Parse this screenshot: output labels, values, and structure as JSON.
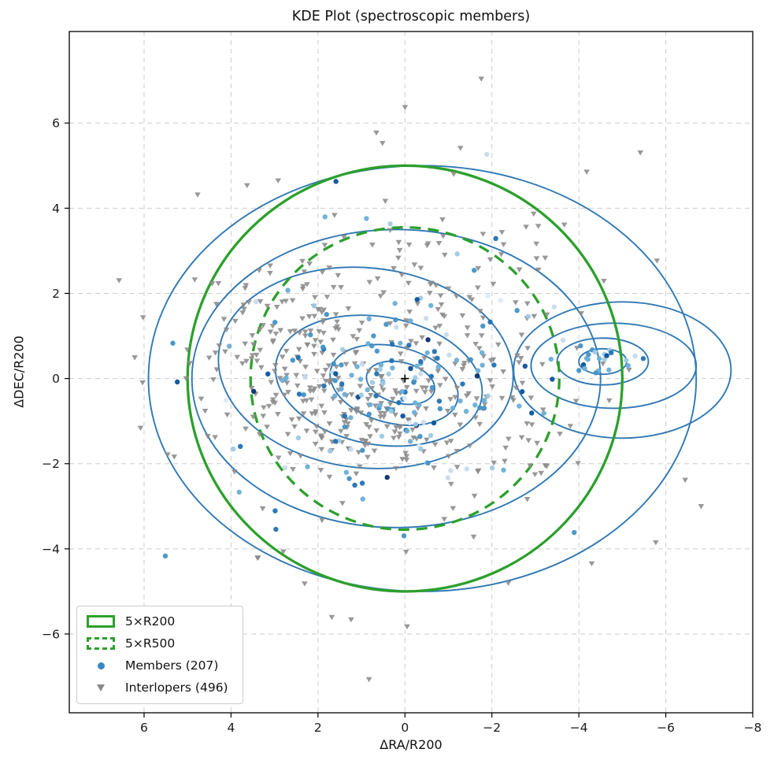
{
  "chart_data": {
    "type": "scatter",
    "subtype": "kde-contour-scatter",
    "title": "KDE Plot (spectroscopic members)",
    "xlabel": "ΔRA/R200",
    "ylabel": "ΔDEC/R200",
    "xlim": [
      7.72,
      -8.0
    ],
    "ylim": [
      -7.85,
      8.15
    ],
    "x_axis_inverted": true,
    "grid": true,
    "grid_style": "dashed",
    "xticks": [
      {
        "value": 6,
        "label": "6"
      },
      {
        "value": 4,
        "label": "4"
      },
      {
        "value": 2,
        "label": "2"
      },
      {
        "value": 0,
        "label": "0"
      },
      {
        "value": -2,
        "label": "−2"
      },
      {
        "value": -4,
        "label": "−4"
      },
      {
        "value": -6,
        "label": "−6"
      },
      {
        "value": -8,
        "label": "−8"
      }
    ],
    "yticks": [
      {
        "value": -6,
        "label": "−6"
      },
      {
        "value": -4,
        "label": "−4"
      },
      {
        "value": -2,
        "label": "−2"
      },
      {
        "value": 0,
        "label": "0"
      },
      {
        "value": 2,
        "label": "2"
      },
      {
        "value": 4,
        "label": "4"
      },
      {
        "value": 6,
        "label": "6"
      }
    ],
    "reference_circles": [
      {
        "name": "5×R200",
        "center": [
          0,
          0
        ],
        "radius": 5.0,
        "line_style": "solid",
        "color": "#2ca02c",
        "width": 3.3
      },
      {
        "name": "5×R500",
        "center": [
          0,
          0
        ],
        "radius": 3.55,
        "line_style": "dashed",
        "color": "#2ca02c",
        "width": 3.3
      }
    ],
    "kde_contours": {
      "color": "#3078b4",
      "width": 1.9,
      "levels": [
        {
          "cx": 0.1,
          "cy": -0.1,
          "rx": 0.8,
          "ry": 0.48,
          "rot": 14
        },
        {
          "cx": 0.25,
          "cy": -0.15,
          "rx": 1.5,
          "ry": 0.9,
          "rot": 14
        },
        {
          "cx": 0.6,
          "cy": -0.05,
          "rx": 2.4,
          "ry": 1.5,
          "rot": 10
        },
        {
          "cx": 0.9,
          "cy": 0.25,
          "rx": 3.4,
          "ry": 2.35,
          "rot": 6
        },
        {
          "cx": 0.2,
          "cy": 0.0,
          "rx": 4.7,
          "ry": 3.5,
          "rot": 0
        },
        {
          "cx": -0.4,
          "cy": 0.0,
          "rx": 6.3,
          "ry": 5.0,
          "rot": 0
        },
        {
          "cx": -4.55,
          "cy": 0.4,
          "rx": 0.55,
          "ry": 0.3,
          "rot": 0
        },
        {
          "cx": -4.55,
          "cy": 0.4,
          "rx": 1.05,
          "ry": 0.55,
          "rot": 0
        },
        {
          "cx": -4.8,
          "cy": 0.3,
          "rx": 1.9,
          "ry": 1.0,
          "rot": 0
        },
        {
          "cx": -5.0,
          "cy": 0.2,
          "rx": 2.5,
          "ry": 1.6,
          "rot": 0
        }
      ]
    },
    "series": [
      {
        "name": "Interlopers (496)",
        "marker": "triangle-down",
        "count": 496,
        "color": "#8a8a8a",
        "opacity": 0.88,
        "clusters": [
          {
            "cx": 2.6,
            "cy": 0.8,
            "sx": 1.0,
            "sy": 0.9,
            "count": 120
          },
          {
            "cx": 1.3,
            "cy": -0.9,
            "sx": 1.0,
            "sy": 0.55,
            "count": 90
          },
          {
            "cx": -0.6,
            "cy": 1.6,
            "sx": 1.6,
            "sy": 1.0,
            "count": 80
          },
          {
            "cx": -1.5,
            "cy": -0.8,
            "sx": 1.5,
            "sy": 1.0,
            "count": 70
          },
          {
            "cx": 0.0,
            "cy": 0.0,
            "sx": 3.2,
            "sy": 2.6,
            "count": 136
          }
        ]
      },
      {
        "name": "Members (207)",
        "marker": "circle",
        "count": 207,
        "palette": [
          "#deebf7",
          "#c6dbef",
          "#9ecae1",
          "#6baed6",
          "#4292c6",
          "#2171b5",
          "#08519c",
          "#08306b"
        ],
        "palette_weights": [
          0.04,
          0.1,
          0.16,
          0.22,
          0.2,
          0.14,
          0.09,
          0.05
        ],
        "opacity": 0.95,
        "clusters": [
          {
            "cx": 0.3,
            "cy": -0.3,
            "sx": 1.5,
            "sy": 1.0,
            "count": 120
          },
          {
            "cx": 0.0,
            "cy": 0.5,
            "sx": 2.2,
            "sy": 1.6,
            "count": 40
          },
          {
            "cx": -4.5,
            "cy": 0.4,
            "sx": 0.45,
            "sy": 0.25,
            "count": 22
          },
          {
            "cx": 0.0,
            "cy": 0.0,
            "sx": 3.2,
            "sy": 2.8,
            "count": 25
          }
        ]
      }
    ],
    "origin_marker": {
      "symbol": "plus",
      "color": "#000000",
      "position": [
        0,
        0
      ]
    },
    "legend": {
      "position": "lower left",
      "items": [
        {
          "label": "5×R200",
          "swatch": "rect-solid"
        },
        {
          "label": "5×R500",
          "swatch": "rect-dashed"
        },
        {
          "label": "Members (207)",
          "swatch": "dot"
        },
        {
          "label": "Interlopers (496)",
          "swatch": "triangle"
        }
      ]
    },
    "colors": {
      "circle_green": "#2ca02c",
      "contour_blue": "#3078b4",
      "member_blue": "#3787c0",
      "interloper_gray": "#8a8a8a",
      "gridline": "#cdcdcd",
      "spine": "#000000"
    },
    "seed": 42
  }
}
